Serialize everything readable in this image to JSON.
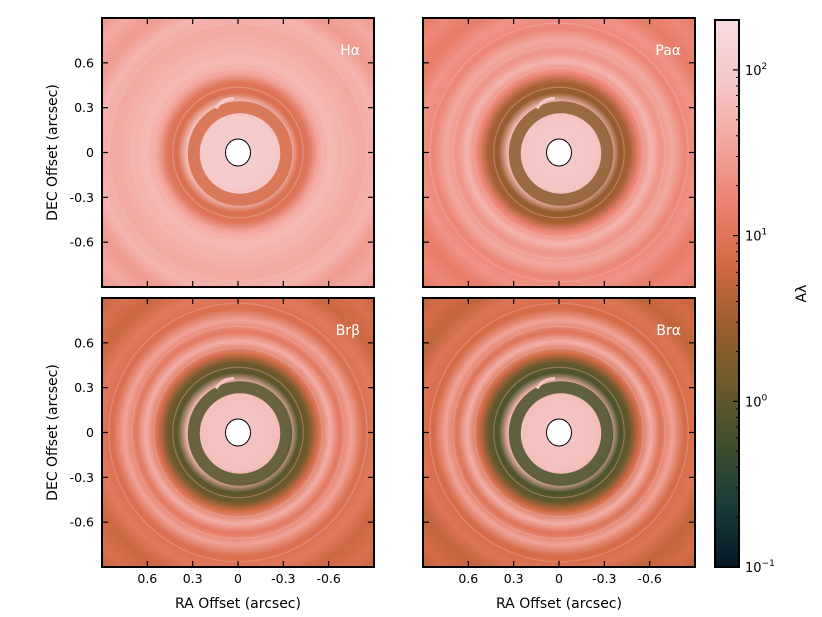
{
  "chart_data": {
    "type": "heatmap",
    "panels": [
      {
        "label": "Hα",
        "ring_intensity": 0.45,
        "outer_level": 0.72,
        "center_level": 0.92
      },
      {
        "label": "Paα",
        "ring_intensity": 0.62,
        "outer_level": 0.62,
        "center_level": 0.9
      },
      {
        "label": "Brβ",
        "ring_intensity": 0.72,
        "outer_level": 0.52,
        "center_level": 0.88
      },
      {
        "label": "Brα",
        "ring_intensity": 0.74,
        "outer_level": 0.5,
        "center_level": 0.88
      }
    ],
    "xlabel": "RA Offset (arcsec)",
    "ylabel": "DEC Offset (arcsec)",
    "x_ticks": [
      "0.6",
      "0.3",
      "0",
      "-0.3",
      "-0.6"
    ],
    "y_ticks": [
      "0.6",
      "0.3",
      "0",
      "-0.3",
      "-0.6"
    ],
    "xlim": [
      0.9,
      -0.9
    ],
    "ylim": [
      -0.9,
      0.9
    ],
    "colorbar": {
      "label": "Aλ",
      "scale": "log",
      "range": [
        0.1,
        200
      ],
      "ticks": [
        {
          "base": "10",
          "exp": "2"
        },
        {
          "base": "10",
          "exp": "1"
        },
        {
          "base": "10",
          "exp": "0"
        },
        {
          "base": "10",
          "exp": "−1"
        }
      ],
      "colors": [
        "#061726",
        "#1a3a3a",
        "#3d4f2e",
        "#6c5a2a",
        "#9c5e30",
        "#d36a45",
        "#ec8271",
        "#f2a8a0",
        "#f5c8c8",
        "#f7dbdf"
      ]
    }
  }
}
